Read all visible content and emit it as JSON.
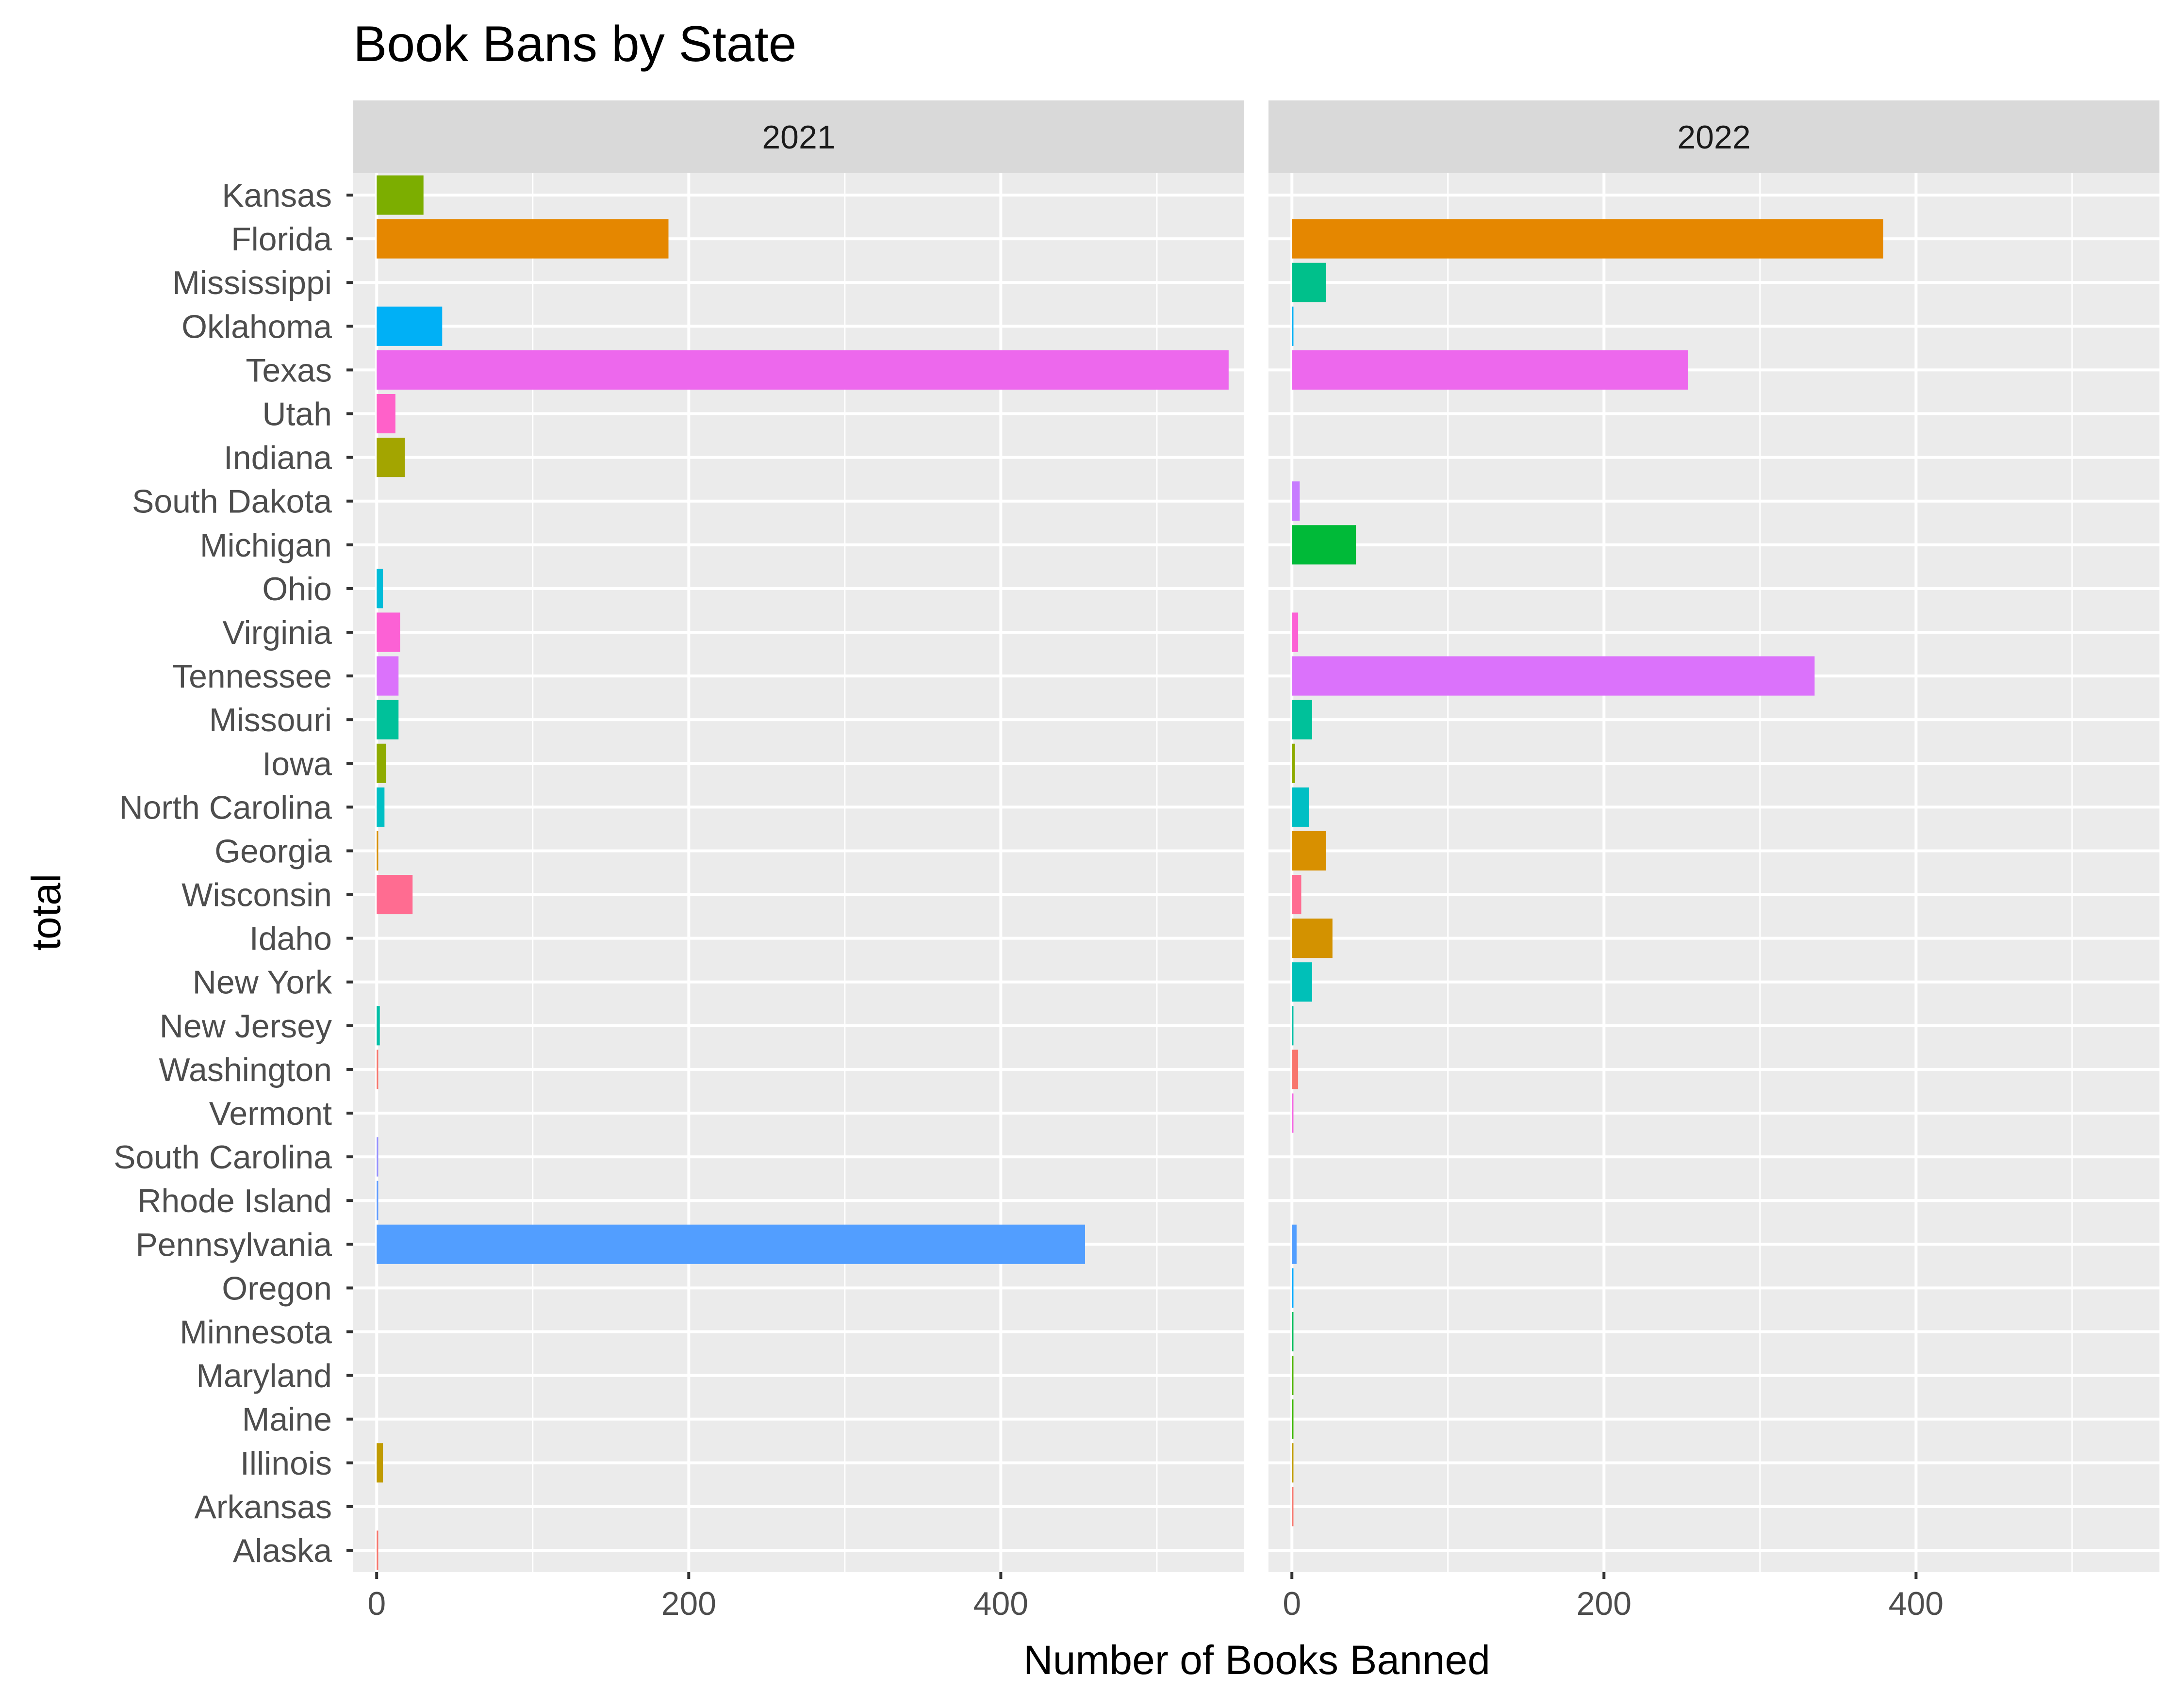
{
  "chart_data": {
    "type": "bar",
    "orientation": "horizontal",
    "title": "Book Bans by State",
    "xlabel": "Number of Books Banned",
    "ylabel": "total",
    "xlim": [
      -15,
      556
    ],
    "x_ticks": [
      0,
      200,
      400
    ],
    "facets": [
      "2021",
      "2022"
    ],
    "categories": [
      "Kansas",
      "Florida",
      "Mississippi",
      "Oklahoma",
      "Texas",
      "Utah",
      "Indiana",
      "South Dakota",
      "Michigan",
      "Ohio",
      "Virginia",
      "Tennessee",
      "Missouri",
      "Iowa",
      "North Carolina",
      "Georgia",
      "Wisconsin",
      "Idaho",
      "New York",
      "New Jersey",
      "Washington",
      "Vermont",
      "South Carolina",
      "Rhode Island",
      "Pennsylvania",
      "Oregon",
      "Minnesota",
      "Maryland",
      "Maine",
      "Illinois",
      "Arkansas",
      "Alaska"
    ],
    "colors": [
      "#7CAE00",
      "#E58700",
      "#00C08B",
      "#00B0F6",
      "#ED68ED",
      "#FF61C9",
      "#A3A500",
      "#C77CFF",
      "#00BA38",
      "#00BCD8",
      "#FC61D5",
      "#DB72FB",
      "#00C19A",
      "#8EAB00",
      "#00BFC4",
      "#D89000",
      "#FF6C91",
      "#D39200",
      "#00C0B8",
      "#00BFA6",
      "#F8766D",
      "#F564E3",
      "#9590FF",
      "#619CFF",
      "#529EFF",
      "#00A9FF",
      "#00BC59",
      "#4DB400",
      "#39B600",
      "#C09B00",
      "#F8766D",
      "#F8766D"
    ],
    "series": [
      {
        "name": "2021",
        "values": [
          30,
          187,
          0,
          42,
          546,
          12,
          18,
          0,
          0,
          4,
          15,
          14,
          14,
          6,
          5,
          1,
          23,
          0,
          0,
          2,
          1,
          0,
          1,
          1,
          454,
          0,
          0,
          0,
          0,
          4,
          0,
          1
        ]
      },
      {
        "name": "2022",
        "values": [
          0,
          379,
          22,
          1,
          254,
          0,
          0,
          5,
          41,
          0,
          4,
          335,
          13,
          2,
          11,
          22,
          6,
          26,
          13,
          1,
          4,
          1,
          0,
          0,
          3,
          1,
          1,
          1,
          1,
          1,
          1,
          0
        ]
      }
    ]
  }
}
